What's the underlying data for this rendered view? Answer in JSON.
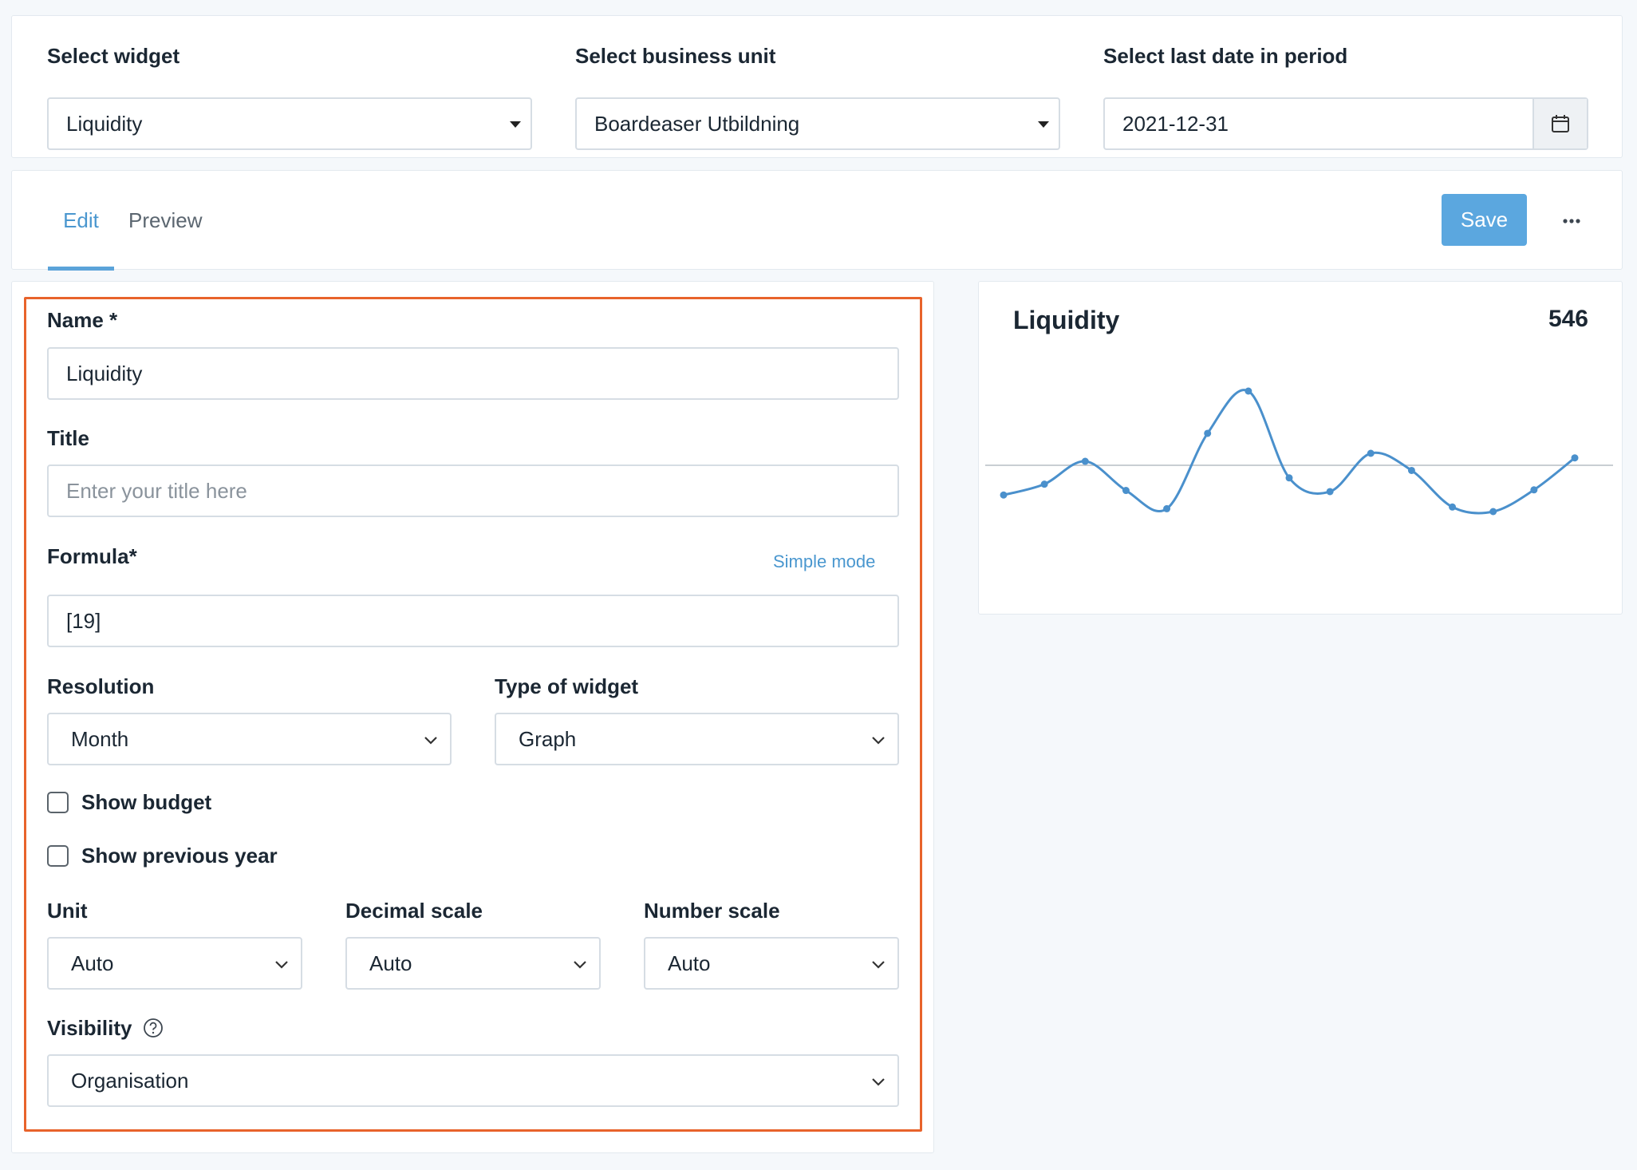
{
  "filters": {
    "widget": {
      "label": "Select widget",
      "value": "Liquidity"
    },
    "business_unit": {
      "label": "Select business unit",
      "value": "Boardeaser Utbildning"
    },
    "last_date": {
      "label": "Select last date in period",
      "value": "2021-12-31"
    }
  },
  "tabs": [
    {
      "label": "Edit",
      "active": true
    },
    {
      "label": "Preview",
      "active": false
    }
  ],
  "toolbar": {
    "save_label": "Save",
    "more_icon": "ellipsis-icon"
  },
  "form": {
    "name": {
      "label": "Name *",
      "value": "Liquidity"
    },
    "title": {
      "label": "Title",
      "placeholder": "Enter your title here",
      "value": ""
    },
    "formula": {
      "label": "Formula*",
      "value": "[19]",
      "mode_link": "Simple mode"
    },
    "resolution": {
      "label": "Resolution",
      "value": "Month"
    },
    "widget_type": {
      "label": "Type of widget",
      "value": "Graph"
    },
    "show_budget": {
      "label": "Show budget",
      "checked": false
    },
    "show_previous_year": {
      "label": "Show previous year",
      "checked": false
    },
    "unit": {
      "label": "Unit",
      "value": "Auto"
    },
    "decimal_scale": {
      "label": "Decimal scale",
      "value": "Auto"
    },
    "number_scale": {
      "label": "Number scale",
      "value": "Auto"
    },
    "visibility": {
      "label": "Visibility",
      "value": "Organisation",
      "help_icon": "question-circle-icon"
    }
  },
  "preview": {
    "title": "Liquidity",
    "value": "546"
  },
  "colors": {
    "accent": "#5ba7df",
    "highlight_frame": "#e8632b",
    "line": "#4a90cc",
    "baseline": "#c9ced3"
  },
  "chart_data": {
    "type": "line",
    "series": [
      {
        "values": [
          0.28,
          0.47,
          0.87,
          0.36,
          0.04,
          1.36,
          2.1,
          0.58,
          0.34,
          1.01,
          0.71,
          0.07,
          -0.01,
          0.37,
          0.93
        ]
      }
    ],
    "baseline": 0.8,
    "grid": false,
    "legend": "none"
  }
}
